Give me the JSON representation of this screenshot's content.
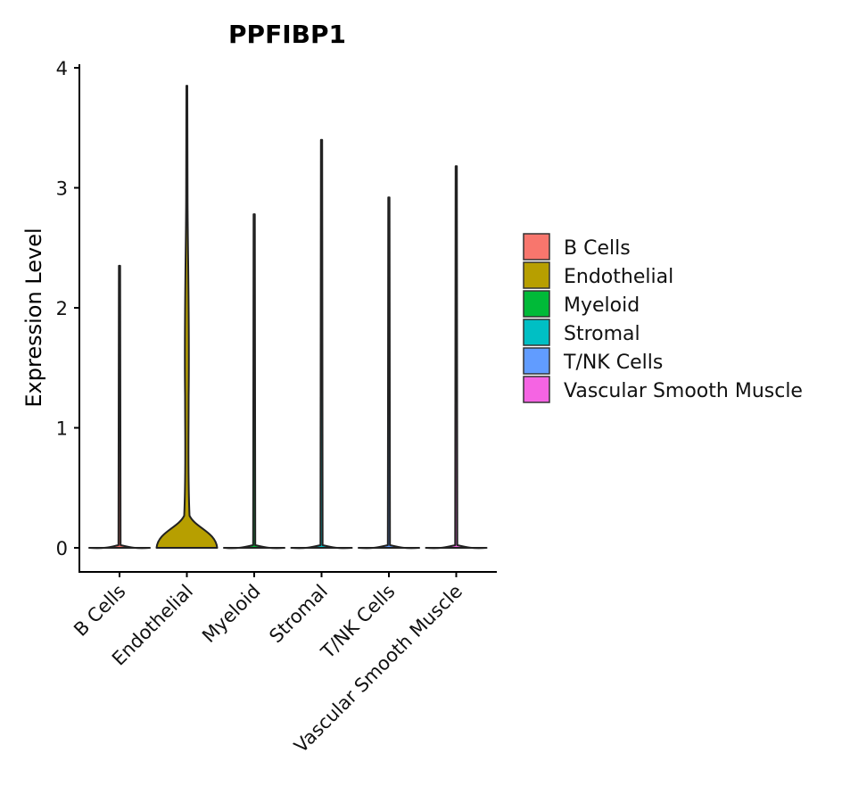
{
  "chart_data": {
    "type": "violin",
    "title": "PPFIBP1",
    "xlabel": "",
    "ylabel": "Expression Level",
    "ylim": [
      -0.2,
      4.05
    ],
    "yticks": [
      "0",
      "1",
      "2",
      "3",
      "4"
    ],
    "categories": [
      "B Cells",
      "Endothelial",
      "Myeloid",
      "Stromal",
      "T/NK Cells",
      "Vascular Smooth Muscle"
    ],
    "colors": [
      "#F8766D",
      "#B79F00",
      "#00BA38",
      "#00BFC4",
      "#619CFF",
      "#F564E3"
    ],
    "max_values": [
      2.35,
      3.85,
      2.78,
      3.4,
      2.92,
      3.18
    ],
    "legend": {
      "position": "right",
      "entries": [
        "B Cells",
        "Endothelial",
        "Myeloid",
        "Stromal",
        "T/NK Cells",
        "Vascular Smooth Muscle"
      ]
    }
  }
}
